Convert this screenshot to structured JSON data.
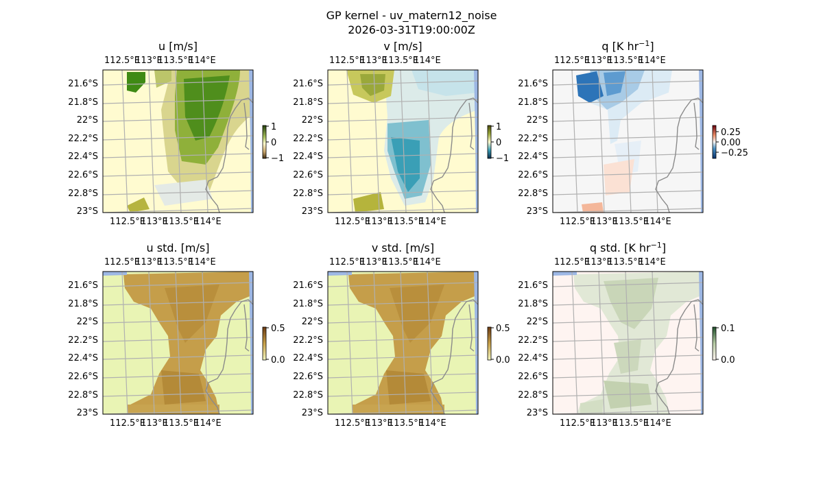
{
  "figure": {
    "title_line1": "GP kernel - uv_matern12_noise",
    "title_line2": "2026-03-31T19:00:00Z"
  },
  "axes": {
    "lon_ticks": [
      "112.5°E",
      "113°E",
      "113.5°E",
      "114°E"
    ],
    "lat_ticks": [
      "21.6°S",
      "21.8°S",
      "22°S",
      "22.2°S",
      "22.4°S",
      "22.6°S",
      "22.8°S",
      "23°S"
    ]
  },
  "panels": [
    {
      "id": "u",
      "title": "u [m/s]",
      "colormap": "yellow-green diverging",
      "colorbar_ticks": [
        "1",
        "0",
        "−1"
      ]
    },
    {
      "id": "v",
      "title": "v [m/s]",
      "colormap": "yellow-teal diverging",
      "colorbar_ticks": [
        "1",
        "0",
        "−1"
      ]
    },
    {
      "id": "q",
      "title_main": "q [K hr",
      "title_sup": "−1",
      "title_close": "]",
      "colormap": "blue-red diverging",
      "colorbar_ticks": [
        "0.25",
        "0.00",
        "−0.25"
      ]
    },
    {
      "id": "u_std",
      "title": "u std. [m/s]",
      "colormap": "green-brown sequential",
      "colorbar_ticks": [
        "0.5",
        "0.0"
      ]
    },
    {
      "id": "v_std",
      "title": "v std. [m/s]",
      "colormap": "green-brown sequential",
      "colorbar_ticks": [
        "0.5",
        "0.0"
      ]
    },
    {
      "id": "q_std",
      "title_main": "q std. [K hr",
      "title_sup": "−1",
      "title_close": "]",
      "colormap": "pink-green sequential",
      "colorbar_ticks": [
        "0.1",
        "0.0"
      ]
    }
  ],
  "colors": {
    "land_blue": "#9db7e4",
    "u_low": "#fffbd0",
    "u_high": "#3f8a14",
    "v_high": "#3a9fb6",
    "q_neg": "#2d74b8",
    "q_pos": "#f4b79a",
    "std_low": "#e9f4b4",
    "std_high": "#bf9442",
    "qstd_low": "#fef4f1",
    "qstd_high": "#b8cca6"
  }
}
